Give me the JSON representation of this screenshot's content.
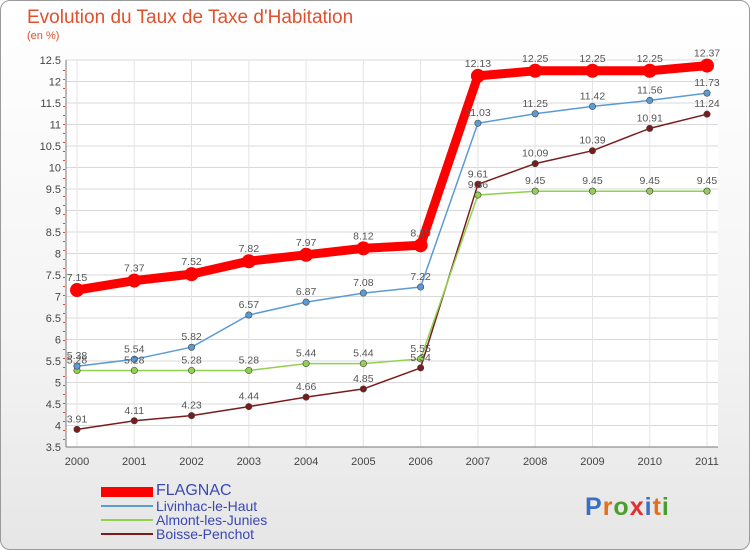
{
  "title": "Evolution du Taux de Taxe d'Habitation",
  "subtitle": "(en %)",
  "logo": {
    "text": "Proxiti",
    "colors": [
      "#3b6fc4",
      "#e36f1e",
      "#4a9d2e",
      "#e22f2f",
      "#3b6fc4",
      "#e36f1e",
      "#4a9d2e"
    ]
  },
  "chart_data": {
    "type": "line",
    "categories": [
      "2000",
      "2001",
      "2002",
      "2003",
      "2004",
      "2005",
      "2006",
      "2007",
      "2008",
      "2009",
      "2010",
      "2011"
    ],
    "ylim": [
      3.5,
      12.5
    ],
    "yticks": [
      "3.5",
      "4",
      "4.5",
      "5",
      "5.5",
      "6",
      "6.5",
      "7",
      "7.5",
      "8",
      "8.5",
      "9",
      "9.5",
      "10",
      "10.5",
      "11",
      "11.5",
      "12",
      "12.5"
    ],
    "grid": true,
    "legend_position": "bottom-left",
    "series": [
      {
        "name": "FLAGNAC",
        "color": "#ff0000",
        "values": [
          7.15,
          7.37,
          7.52,
          7.82,
          7.97,
          8.12,
          8.19,
          12.13,
          12.25,
          12.25,
          12.25,
          12.37
        ],
        "labels": [
          "7.15",
          "7.37",
          "7.52",
          "7.82",
          "7.97",
          "8.12",
          "8.19",
          "12.13",
          "12.25",
          "12.25",
          "12.25",
          "12.37"
        ]
      },
      {
        "name": "Livinhac-le-Haut",
        "color": "#5b9bd5",
        "values": [
          5.38,
          5.54,
          5.82,
          6.57,
          6.87,
          7.08,
          7.22,
          11.03,
          11.25,
          11.42,
          11.56,
          11.73
        ],
        "labels": [
          "5.38",
          "5.54",
          "5.82",
          "6.57",
          "6.87",
          "7.08",
          "7.22",
          "11.03",
          "11.25",
          "11.42",
          "11.56",
          "11.73"
        ]
      },
      {
        "name": "Almont-les-Junies",
        "color": "#92d050",
        "values": [
          5.28,
          5.28,
          5.28,
          5.28,
          5.44,
          5.44,
          5.55,
          9.36,
          9.45,
          9.45,
          9.45,
          9.45
        ],
        "labels": [
          "5.28",
          "5.28",
          "5.28",
          "5.28",
          "5.44",
          "5.44",
          "5.55",
          "9.36",
          "9.45",
          "9.45",
          "9.45",
          "9.45"
        ]
      },
      {
        "name": "Boisse-Penchot",
        "color": "#7b1c1c",
        "values": [
          3.91,
          4.11,
          4.23,
          4.44,
          4.66,
          4.85,
          5.34,
          9.61,
          10.09,
          10.39,
          10.91,
          11.24
        ],
        "labels": [
          "3.91",
          "4.11",
          "4.23",
          "4.44",
          "4.66",
          "4.85",
          "5.34",
          "9.61",
          "10.09",
          "10.39",
          "10.91",
          "11.24"
        ]
      }
    ]
  }
}
